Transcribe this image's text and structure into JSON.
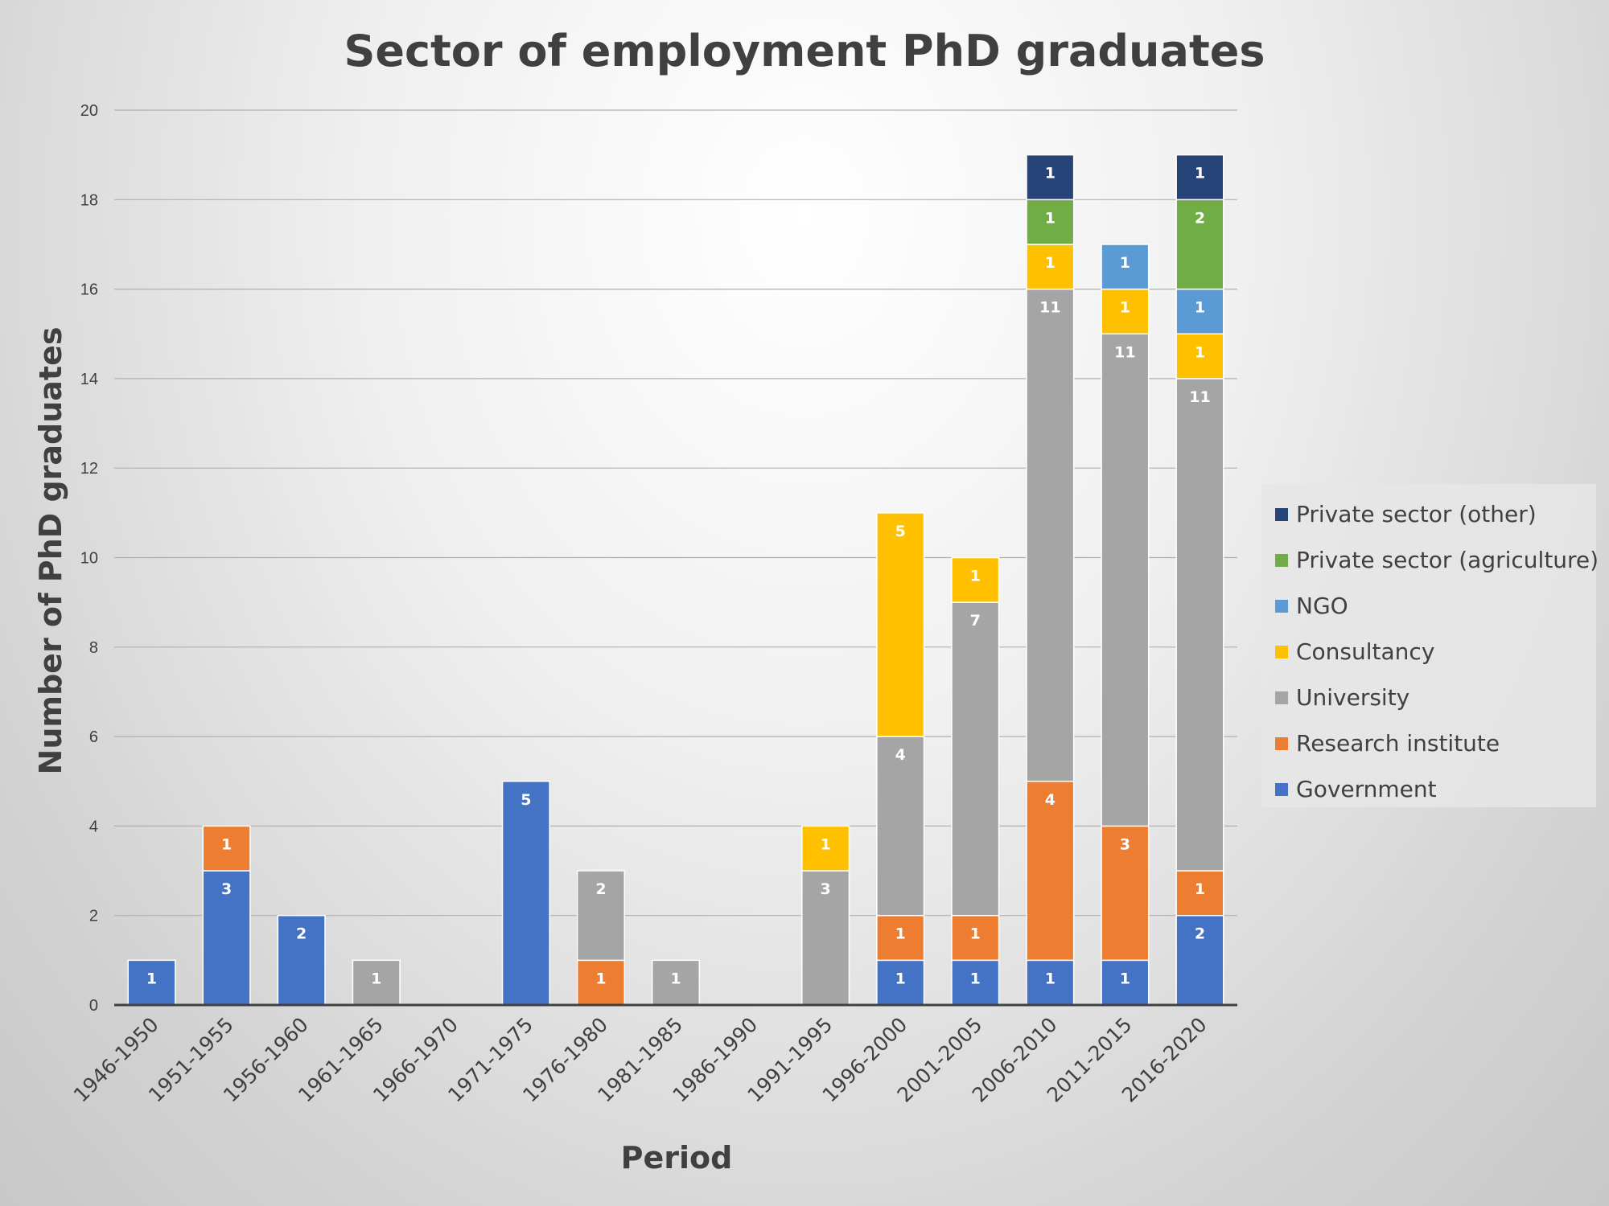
{
  "chart_data": {
    "type": "bar",
    "stacked": true,
    "title": "Sector of employment PhD graduates",
    "xlabel": "Period",
    "ylabel": "Number of PhD graduates",
    "ylim": [
      0,
      20
    ],
    "yticks": [
      0,
      2,
      4,
      6,
      8,
      10,
      12,
      14,
      16,
      18,
      20
    ],
    "grid": true,
    "legend_position": "right",
    "categories": [
      "1946-1950",
      "1951-1955",
      "1956-1960",
      "1961-1965",
      "1966-1970",
      "1971-1975",
      "1976-1980",
      "1981-1985",
      "1986-1990",
      "1991-1995",
      "1996-2000",
      "2001-2005",
      "2006-2010",
      "2011-2015",
      "2016-2020"
    ],
    "series": [
      {
        "name": "Government",
        "color": "#4472C4",
        "values": [
          1,
          3,
          2,
          0,
          0,
          5,
          0,
          0,
          0,
          0,
          1,
          1,
          1,
          1,
          2
        ]
      },
      {
        "name": "Research institute",
        "color": "#ED7D31",
        "values": [
          0,
          1,
          0,
          0,
          0,
          0,
          1,
          0,
          0,
          0,
          1,
          1,
          4,
          3,
          1
        ]
      },
      {
        "name": "University",
        "color": "#A5A5A5",
        "values": [
          0,
          0,
          0,
          1,
          0,
          0,
          2,
          1,
          0,
          3,
          4,
          7,
          11,
          11,
          11
        ]
      },
      {
        "name": "Consultancy",
        "color": "#FFC000",
        "values": [
          0,
          0,
          0,
          0,
          0,
          0,
          0,
          0,
          0,
          1,
          5,
          1,
          1,
          1,
          1
        ]
      },
      {
        "name": "NGO",
        "color": "#5B9BD5",
        "values": [
          0,
          0,
          0,
          0,
          0,
          0,
          0,
          0,
          0,
          0,
          0,
          0,
          0,
          1,
          1
        ]
      },
      {
        "name": "Private sector (agriculture)",
        "color": "#70AD47",
        "values": [
          0,
          0,
          0,
          0,
          0,
          0,
          0,
          0,
          0,
          0,
          0,
          0,
          1,
          0,
          2
        ]
      },
      {
        "name": "Private sector (other)",
        "color": "#264478",
        "values": [
          0,
          0,
          0,
          0,
          0,
          0,
          0,
          0,
          0,
          0,
          0,
          0,
          1,
          0,
          1
        ]
      }
    ]
  }
}
